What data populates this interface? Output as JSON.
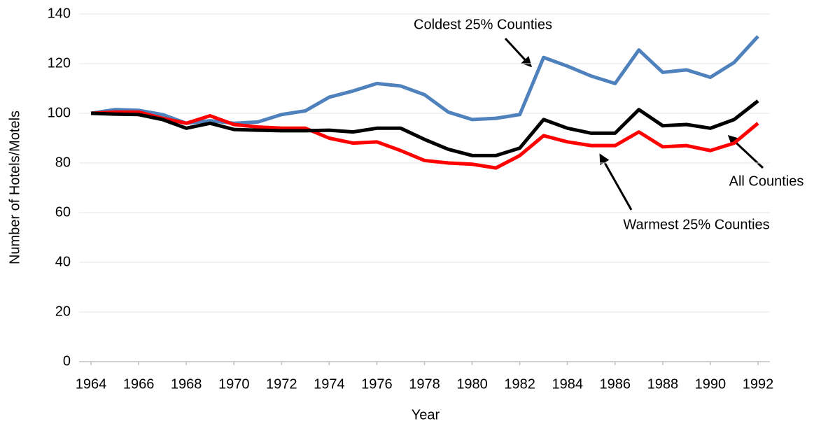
{
  "chart_data": {
    "type": "line",
    "x_label": "Year",
    "y_label": "Number of Hotels/Motels",
    "x": [
      1964,
      1965,
      1966,
      1967,
      1968,
      1969,
      1970,
      1971,
      1972,
      1973,
      1974,
      1975,
      1976,
      1977,
      1978,
      1979,
      1980,
      1981,
      1982,
      1983,
      1984,
      1985,
      1986,
      1987,
      1988,
      1989,
      1990,
      1991,
      1992
    ],
    "series": [
      {
        "name": "Coldest 25% Counties",
        "color": "#4f81bd",
        "values": [
          100,
          101.5,
          101.2,
          99.5,
          96,
          97,
          96,
          96.5,
          99.5,
          101,
          106.5,
          109,
          112,
          111,
          107.5,
          100.5,
          97.5,
          98,
          99.5,
          122.5,
          119,
          115,
          112,
          125.5,
          116.5,
          117.5,
          114.5,
          120.5,
          131
        ]
      },
      {
        "name": "Warmest 25% Counties",
        "color": "#ff0000",
        "values": [
          100,
          100.5,
          100.5,
          98,
          96,
          99,
          95.5,
          94.5,
          94,
          94,
          90,
          88,
          88.5,
          85,
          81,
          80,
          79.5,
          78,
          83,
          91,
          88.5,
          87,
          87,
          92.5,
          86.5,
          87,
          85,
          88,
          96
        ]
      },
      {
        "name": "All Counties",
        "color": "#000000",
        "values": [
          100,
          99.7,
          99.5,
          97.5,
          94,
          96,
          93.5,
          93.2,
          93,
          93,
          93.2,
          92.5,
          94,
          94,
          89.5,
          85.5,
          83,
          83,
          86,
          97.5,
          94,
          92,
          92,
          101.5,
          95,
          95.5,
          94,
          97.5,
          105
        ]
      }
    ],
    "xlim": [
      1963.5,
      1992.5
    ],
    "ylim": [
      0,
      140
    ],
    "xticks": [
      1964,
      1966,
      1968,
      1970,
      1972,
      1974,
      1976,
      1978,
      1980,
      1982,
      1984,
      1986,
      1988,
      1990,
      1992
    ],
    "yticks": [
      0,
      20,
      40,
      60,
      80,
      100,
      120,
      140
    ],
    "grid": true
  }
}
